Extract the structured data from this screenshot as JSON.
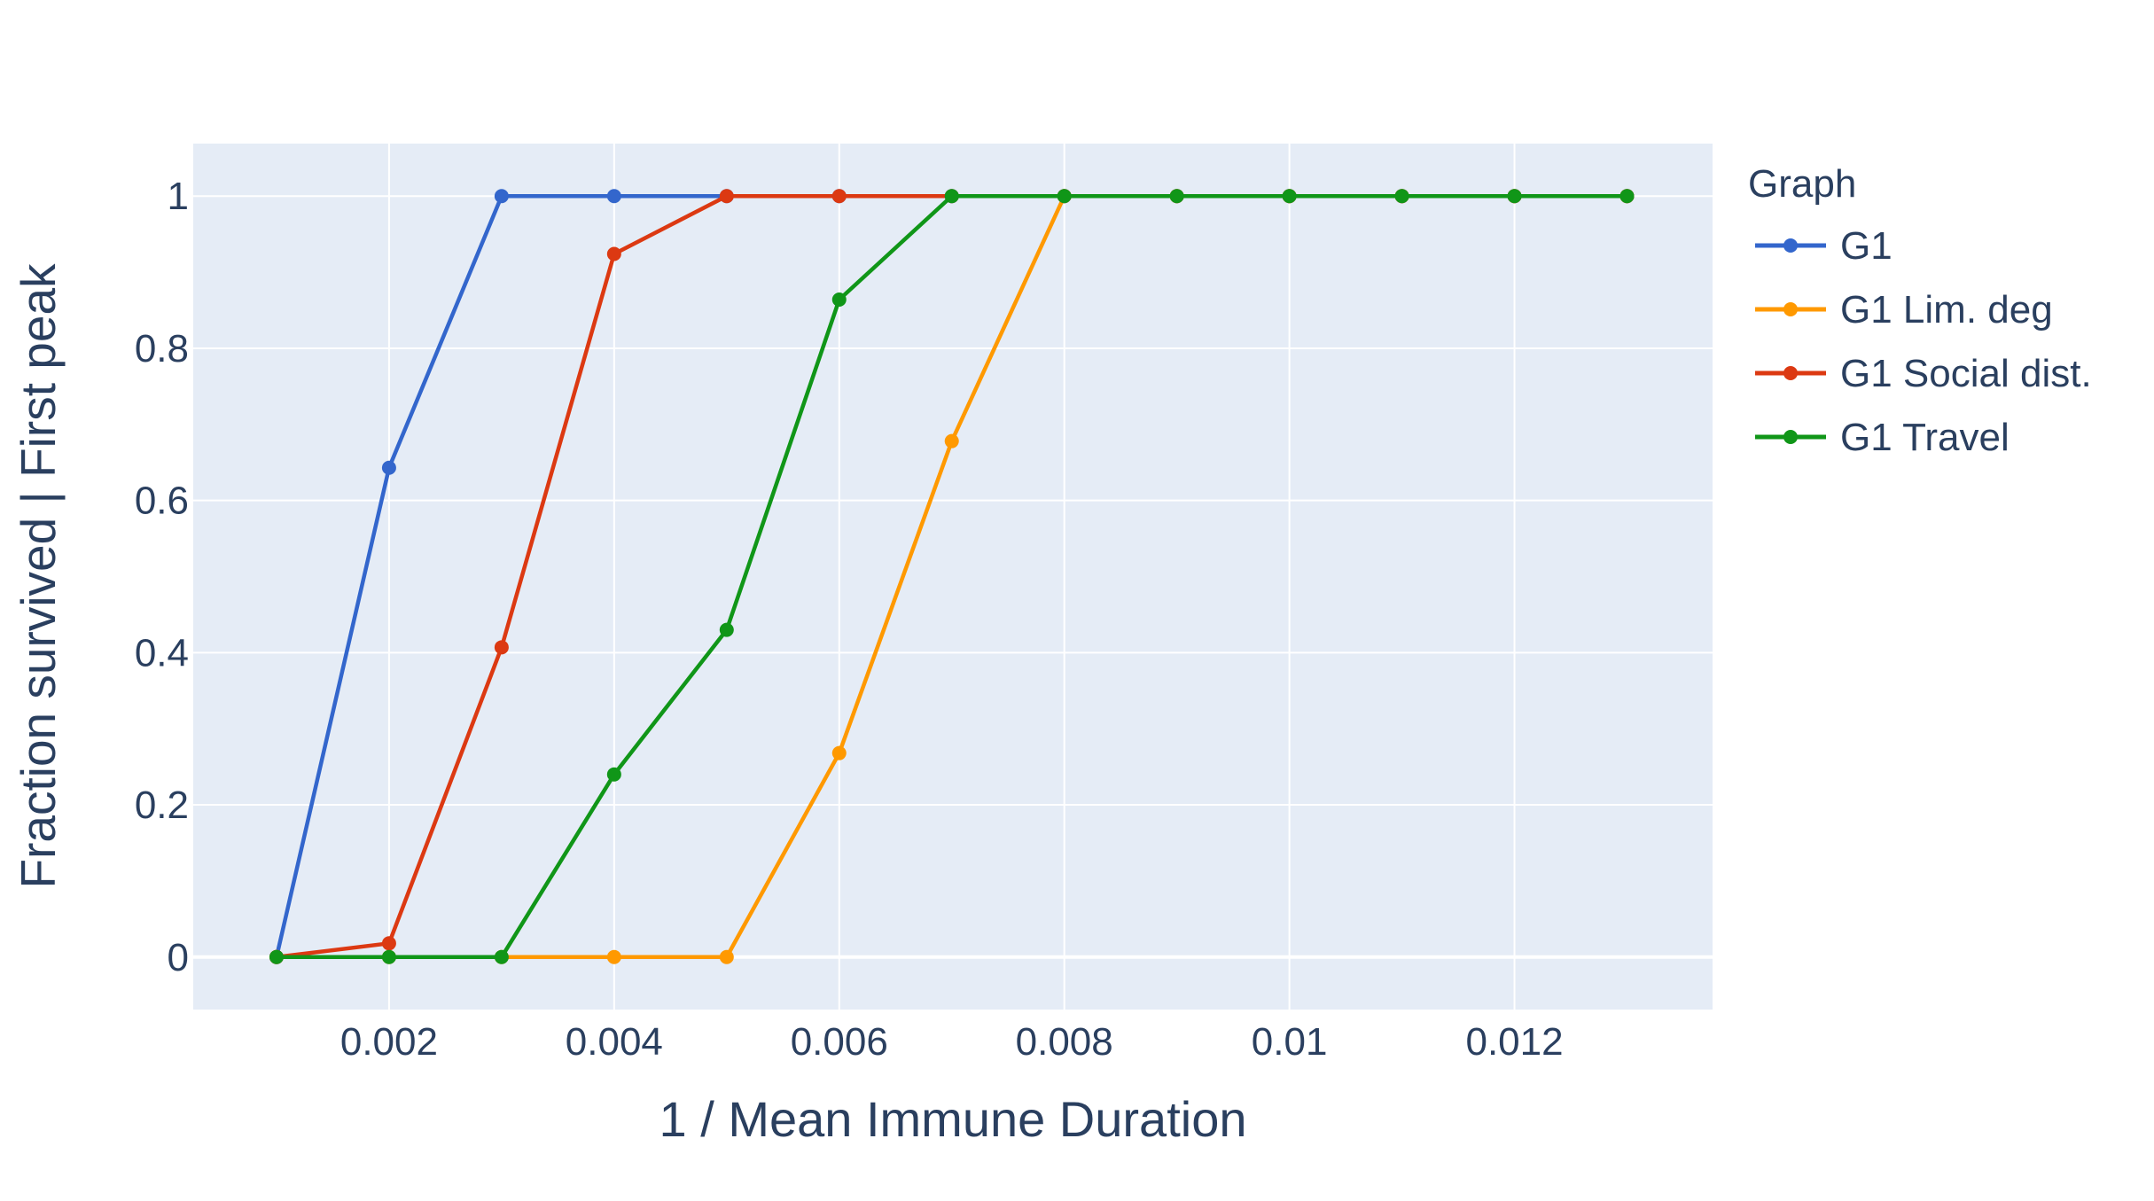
{
  "chart_data": {
    "type": "line",
    "title": "",
    "xlabel": "1 / Mean Immune Duration",
    "ylabel": "Fraction survived  | First peak",
    "xlim": [
      0.00026,
      0.01376
    ],
    "ylim": [
      -0.069,
      1.069
    ],
    "grid": true,
    "xticks": [
      0.002,
      0.004,
      0.006,
      0.008,
      0.01,
      0.012
    ],
    "xtick_labels": [
      "0.002",
      "0.004",
      "0.006",
      "0.008",
      "0.01",
      "0.012"
    ],
    "yticks": [
      0,
      0.2,
      0.4,
      0.6,
      0.8,
      1
    ],
    "ytick_labels": [
      "0",
      "0.2",
      "0.4",
      "0.6",
      "0.8",
      "1"
    ],
    "legend_title": "Graph",
    "legend_placement": "right",
    "x": [
      0.001,
      0.002,
      0.003,
      0.004,
      0.005,
      0.006,
      0.007,
      0.008,
      0.009,
      0.01,
      0.011,
      0.012,
      0.013
    ],
    "series": [
      {
        "name": "G1",
        "color": "#3366cc",
        "values": [
          0,
          0.643,
          1,
          1,
          1,
          1,
          1,
          1,
          1,
          1,
          1,
          1,
          1
        ]
      },
      {
        "name": "G1 Lim. deg",
        "color": "#ff9900",
        "values": [
          0,
          0,
          0,
          0,
          0,
          0.268,
          0.678,
          1,
          1,
          1,
          1,
          1,
          1
        ]
      },
      {
        "name": "G1 Social dist.",
        "color": "#dc3912",
        "values": [
          0,
          0.018,
          0.407,
          0.924,
          1,
          1,
          1,
          1,
          1,
          1,
          1,
          1,
          1
        ]
      },
      {
        "name": "G1 Travel",
        "color": "#109618",
        "values": [
          0,
          0,
          0,
          0.24,
          0.43,
          0.864,
          1,
          1,
          1,
          1,
          1,
          1,
          1
        ]
      }
    ]
  }
}
